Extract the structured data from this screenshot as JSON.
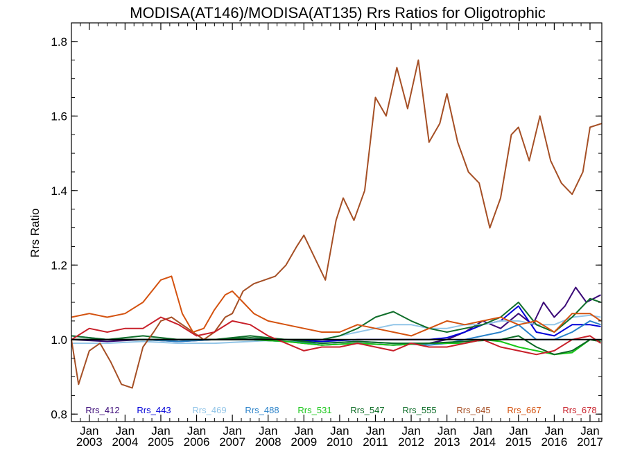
{
  "chart_data": {
    "type": "line",
    "title": "MODISA(AT146)/MODISA(AT135)  Rrs Ratios for Oligotrophic",
    "xlabel": "",
    "ylabel": "Rrs Ratio",
    "xlim": [
      2002.5,
      2017.33
    ],
    "ylim": [
      0.78,
      1.85
    ],
    "yticks": [
      0.8,
      1.0,
      1.2,
      1.4,
      1.6,
      1.8
    ],
    "ytick_labels": [
      "0.8",
      "1.0",
      "1.2",
      "1.4",
      "1.6",
      "1.8"
    ],
    "xticks": [
      {
        "value": 2003,
        "month": "Jan",
        "year": "2003"
      },
      {
        "value": 2004,
        "month": "Jan",
        "year": "2004"
      },
      {
        "value": 2005,
        "month": "Jan",
        "year": "2005"
      },
      {
        "value": 2006,
        "month": "Jan",
        "year": "2006"
      },
      {
        "value": 2007,
        "month": "Jan",
        "year": "2007"
      },
      {
        "value": 2008,
        "month": "Jan",
        "year": "2008"
      },
      {
        "value": 2009,
        "month": "Jan",
        "year": "2009"
      },
      {
        "value": 2010,
        "month": "Jan",
        "year": "2010"
      },
      {
        "value": 2011,
        "month": "Jan",
        "year": "2011"
      },
      {
        "value": 2012,
        "month": "Jan",
        "year": "2012"
      },
      {
        "value": 2013,
        "month": "Jan",
        "year": "2013"
      },
      {
        "value": 2014,
        "month": "Jan",
        "year": "2014"
      },
      {
        "value": 2015,
        "month": "Jan",
        "year": "2015"
      },
      {
        "value": 2016,
        "month": "Jan",
        "year": "2016"
      },
      {
        "value": 2017,
        "month": "Jan",
        "year": "2017"
      }
    ],
    "reference_line": 1.0,
    "legend_position": "bottom",
    "series": [
      {
        "name": "Rrs_412",
        "color": "#3b0a78",
        "x": [
          2002.5,
          2003.5,
          2004.5,
          2005.5,
          2006.5,
          2007.5,
          2008.5,
          2009.5,
          2010.5,
          2011.5,
          2012.5,
          2013.0,
          2013.5,
          2014.0,
          2014.5,
          2015.0,
          2015.4,
          2015.7,
          2016.0,
          2016.3,
          2016.6,
          2016.9,
          2017.3
        ],
        "y": [
          1.0,
          0.995,
          1.0,
          0.995,
          1.0,
          1.0,
          0.995,
          0.985,
          0.99,
          0.985,
          0.99,
          1.0,
          1.02,
          1.05,
          1.03,
          1.07,
          1.04,
          1.1,
          1.06,
          1.09,
          1.14,
          1.1,
          1.12
        ]
      },
      {
        "name": "Rrs_443",
        "color": "#0000d8",
        "x": [
          2002.5,
          2003.5,
          2004.5,
          2005.5,
          2006.5,
          2007.5,
          2008.5,
          2009.5,
          2010.5,
          2011.5,
          2012.5,
          2013.0,
          2013.5,
          2014.0,
          2014.5,
          2015.0,
          2015.5,
          2016.0,
          2016.5,
          2017.0,
          2017.3
        ],
        "y": [
          1.0,
          1.0,
          1.0,
          1.0,
          1.0,
          1.0,
          1.0,
          0.995,
          1.0,
          1.0,
          1.0,
          1.005,
          1.02,
          1.04,
          1.05,
          1.09,
          1.02,
          1.01,
          1.04,
          1.04,
          1.035
        ]
      },
      {
        "name": "Rrs_469",
        "color": "#92c5e8",
        "x": [
          2002.5,
          2003.5,
          2004.5,
          2005.5,
          2006.5,
          2007.5,
          2008.5,
          2009.5,
          2010.5,
          2011.0,
          2011.5,
          2012.0,
          2012.5,
          2013.0,
          2013.5,
          2014.0,
          2014.5,
          2015.0,
          2015.5,
          2016.0,
          2016.5,
          2017.0,
          2017.3
        ],
        "y": [
          0.99,
          0.99,
          0.995,
          0.99,
          0.99,
          0.995,
          1.0,
          1.0,
          1.02,
          1.03,
          1.04,
          1.04,
          1.03,
          1.03,
          1.04,
          1.04,
          1.05,
          1.05,
          1.04,
          1.04,
          1.06,
          1.065,
          1.06
        ]
      },
      {
        "name": "Rrs_488",
        "color": "#2a82c9",
        "x": [
          2002.5,
          2003.5,
          2004.5,
          2005.5,
          2006.5,
          2007.5,
          2008.5,
          2009.5,
          2010.5,
          2011.5,
          2012.5,
          2013.0,
          2013.5,
          2014.0,
          2014.5,
          2015.0,
          2015.5,
          2016.0,
          2016.5,
          2017.0,
          2017.3
        ],
        "y": [
          1.01,
          1.0,
          1.0,
          0.995,
          1.0,
          1.0,
          0.995,
          0.99,
          0.995,
          0.99,
          0.985,
          0.99,
          1.0,
          1.01,
          1.02,
          1.04,
          1.0,
          1.0,
          1.02,
          1.05,
          1.04
        ]
      },
      {
        "name": "Rrs_531",
        "color": "#19c719",
        "x": [
          2002.5,
          2003.5,
          2004.5,
          2005.5,
          2006.5,
          2007.5,
          2008.5,
          2009.5,
          2010.5,
          2011.5,
          2012.5,
          2013.5,
          2014.0,
          2014.5,
          2015.0,
          2015.5,
          2016.0,
          2016.5,
          2017.0,
          2017.3
        ],
        "y": [
          1.0,
          1.0,
          1.0,
          1.0,
          1.0,
          1.0,
          0.995,
          0.985,
          0.99,
          0.985,
          0.99,
          0.99,
          1.0,
          0.995,
          0.98,
          0.97,
          0.96,
          0.965,
          1.0,
          0.995
        ]
      },
      {
        "name": "Rrs_547",
        "color": "#0b6b24",
        "x": [
          2002.5,
          2003.5,
          2004.5,
          2005.5,
          2006.5,
          2007.5,
          2008.5,
          2009.5,
          2010.5,
          2011.5,
          2012.5,
          2013.5,
          2014.5,
          2015.0,
          2015.5,
          2016.0,
          2016.5,
          2017.0,
          2017.3
        ],
        "y": [
          1.0,
          1.0,
          1.0,
          1.0,
          1.0,
          1.005,
          1.0,
          0.99,
          0.995,
          0.99,
          0.99,
          0.995,
          1.0,
          1.01,
          0.98,
          0.96,
          0.97,
          1.0,
          0.995
        ]
      },
      {
        "name": "Rrs_555",
        "color": "#0f6e2a",
        "x": [
          2002.5,
          2003.5,
          2004.5,
          2005.5,
          2006.5,
          2007.5,
          2008.5,
          2009.5,
          2010.0,
          2010.5,
          2011.0,
          2011.5,
          2012.0,
          2012.5,
          2013.0,
          2013.5,
          2014.0,
          2014.5,
          2015.0,
          2015.5,
          2016.0,
          2016.5,
          2017.0,
          2017.3
        ],
        "y": [
          1.01,
          1.0,
          1.01,
          1.0,
          1.0,
          1.01,
          1.0,
          1.0,
          1.01,
          1.03,
          1.06,
          1.075,
          1.05,
          1.03,
          1.02,
          1.03,
          1.04,
          1.06,
          1.1,
          1.04,
          1.02,
          1.06,
          1.11,
          1.1
        ]
      },
      {
        "name": "Rrs_645",
        "color": "#a54f25",
        "x": [
          2002.5,
          2002.7,
          2003.0,
          2003.3,
          2003.6,
          2003.9,
          2004.2,
          2004.5,
          2004.8,
          2005.0,
          2005.3,
          2005.6,
          2005.9,
          2006.2,
          2006.5,
          2006.8,
          2007.0,
          2007.3,
          2007.6,
          2007.9,
          2008.2,
          2008.5,
          2008.8,
          2009.0,
          2009.3,
          2009.6,
          2009.9,
          2010.1,
          2010.4,
          2010.7,
          2011.0,
          2011.3,
          2011.6,
          2011.9,
          2012.2,
          2012.5,
          2012.8,
          2013.0,
          2013.3,
          2013.6,
          2013.9,
          2014.2,
          2014.5,
          2014.8,
          2015.0,
          2015.3,
          2015.6,
          2015.9,
          2016.2,
          2016.5,
          2016.8,
          2017.0,
          2017.33
        ],
        "y": [
          1.0,
          0.88,
          0.97,
          0.99,
          0.94,
          0.88,
          0.87,
          0.98,
          1.02,
          1.05,
          1.06,
          1.04,
          1.02,
          1.0,
          1.02,
          1.06,
          1.07,
          1.13,
          1.15,
          1.16,
          1.17,
          1.2,
          1.25,
          1.28,
          1.22,
          1.16,
          1.32,
          1.38,
          1.32,
          1.4,
          1.65,
          1.6,
          1.73,
          1.62,
          1.75,
          1.53,
          1.58,
          1.66,
          1.53,
          1.45,
          1.42,
          1.3,
          1.38,
          1.55,
          1.57,
          1.48,
          1.6,
          1.48,
          1.42,
          1.39,
          1.45,
          1.57,
          1.58
        ]
      },
      {
        "name": "Rrs_667",
        "color": "#d4520f",
        "x": [
          2002.5,
          2003.0,
          2003.5,
          2004.0,
          2004.5,
          2005.0,
          2005.3,
          2005.6,
          2005.9,
          2006.2,
          2006.5,
          2006.8,
          2007.0,
          2007.3,
          2007.6,
          2008.0,
          2008.5,
          2009.0,
          2009.5,
          2010.0,
          2010.5,
          2011.0,
          2011.5,
          2012.0,
          2012.5,
          2013.0,
          2013.5,
          2014.0,
          2014.5,
          2015.0,
          2015.5,
          2016.0,
          2016.5,
          2017.0,
          2017.3
        ],
        "y": [
          1.06,
          1.07,
          1.06,
          1.07,
          1.1,
          1.16,
          1.17,
          1.07,
          1.02,
          1.03,
          1.08,
          1.12,
          1.13,
          1.1,
          1.07,
          1.05,
          1.04,
          1.03,
          1.02,
          1.02,
          1.04,
          1.03,
          1.02,
          1.01,
          1.03,
          1.05,
          1.04,
          1.05,
          1.06,
          1.04,
          1.05,
          1.02,
          1.07,
          1.07,
          1.05
        ]
      },
      {
        "name": "Rrs_678",
        "color": "#c8202a",
        "x": [
          2002.5,
          2003.0,
          2003.5,
          2004.0,
          2004.5,
          2005.0,
          2005.5,
          2006.0,
          2006.5,
          2007.0,
          2007.5,
          2008.0,
          2008.5,
          2009.0,
          2009.5,
          2010.0,
          2010.5,
          2011.0,
          2011.5,
          2012.0,
          2012.5,
          2013.0,
          2013.5,
          2014.0,
          2014.5,
          2015.0,
          2015.5,
          2016.0,
          2016.5,
          2017.0,
          2017.3
        ],
        "y": [
          1.0,
          1.03,
          1.02,
          1.03,
          1.03,
          1.06,
          1.04,
          1.01,
          1.02,
          1.05,
          1.04,
          1.01,
          0.99,
          0.97,
          0.98,
          0.98,
          0.99,
          0.98,
          0.97,
          0.99,
          0.98,
          0.98,
          0.99,
          1.0,
          0.98,
          0.97,
          0.96,
          0.97,
          1.0,
          1.01,
          0.99
        ]
      }
    ]
  }
}
